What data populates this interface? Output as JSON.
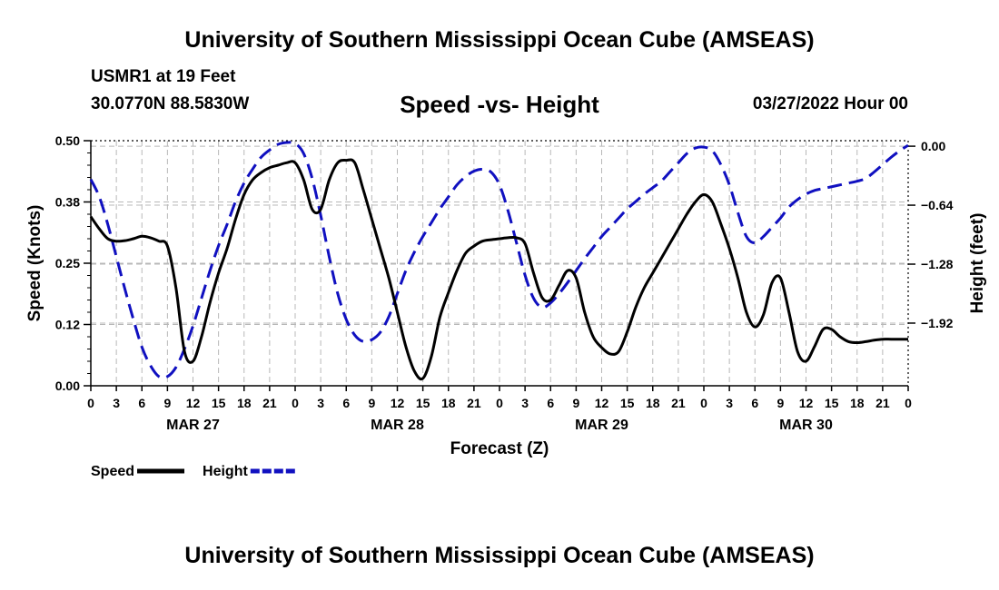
{
  "header": {
    "title": "University of Southern Mississippi Ocean Cube (AMSEAS)",
    "station": "USMR1 at 19 Feet",
    "coords": "30.0770N  88.5830W",
    "subtitle": "Speed -vs- Height",
    "datetime": "03/27/2022 Hour 00"
  },
  "footer": {
    "title": "University of Southern Mississippi Ocean Cube (AMSEAS)"
  },
  "chart_data": {
    "type": "line",
    "xlabel": "Forecast (Z)",
    "ylabel": "Speed (Knots)",
    "y2label": "Height (feet)",
    "xlim": [
      0,
      96
    ],
    "ylim": [
      0,
      0.5
    ],
    "y2lim": [
      -2.6,
      0.06
    ],
    "yticks": [
      0.0,
      0.125,
      0.25,
      0.375,
      0.5
    ],
    "ytick_labels": [
      "0.00",
      "0.12",
      "0.25",
      "0.38",
      "0.50"
    ],
    "y2ticks": [
      0.0,
      -0.64,
      -1.28,
      -1.92
    ],
    "y2tick_labels": [
      "0.00",
      "−0.64",
      "−1.28",
      "−1.92"
    ],
    "xtick_labels": [
      "0",
      "3",
      "6",
      "9",
      "12",
      "15",
      "18",
      "21",
      "0",
      "3",
      "6",
      "9",
      "12",
      "15",
      "18",
      "21",
      "0",
      "3",
      "6",
      "9",
      "12",
      "15",
      "18",
      "21",
      "0",
      "3",
      "6",
      "9",
      "12",
      "15",
      "18",
      "21",
      "0"
    ],
    "day_labels": [
      {
        "label": "MAR 27",
        "hour": 12
      },
      {
        "label": "MAR 28",
        "hour": 36
      },
      {
        "label": "MAR 29",
        "hour": 60
      },
      {
        "label": "MAR 30",
        "hour": 84
      }
    ],
    "legend": [
      {
        "name": "Speed",
        "color": "#000000",
        "style": "solid"
      },
      {
        "name": "Height",
        "color": "#1010c0",
        "style": "dashed"
      }
    ],
    "series": [
      {
        "name": "Speed",
        "axis": "left",
        "color": "#000000",
        "x": [
          0,
          1,
          2,
          3,
          4,
          5,
          6,
          7,
          8,
          9,
          10,
          11,
          12,
          13,
          14,
          15,
          16,
          17,
          18,
          19,
          20,
          21,
          22,
          23,
          24,
          25,
          26,
          27,
          28,
          29,
          30,
          31,
          32,
          33,
          34,
          35,
          36,
          37,
          38,
          39,
          40,
          41,
          42,
          43,
          44,
          45,
          46,
          47,
          48,
          49,
          50,
          51,
          52,
          53,
          54,
          55,
          56,
          57,
          58,
          59,
          60,
          61,
          62,
          63,
          64,
          65,
          66,
          67,
          68,
          69,
          70,
          71,
          72,
          73,
          74,
          75,
          76,
          77,
          78,
          79,
          80,
          81,
          82,
          83,
          84,
          85,
          86,
          87,
          88,
          89,
          90,
          91,
          92,
          93,
          94,
          95,
          96
        ],
        "values": [
          0.345,
          0.32,
          0.3,
          0.295,
          0.296,
          0.3,
          0.305,
          0.302,
          0.295,
          0.285,
          0.2,
          0.07,
          0.05,
          0.1,
          0.17,
          0.23,
          0.28,
          0.34,
          0.39,
          0.42,
          0.435,
          0.445,
          0.45,
          0.455,
          0.455,
          0.42,
          0.36,
          0.36,
          0.42,
          0.455,
          0.46,
          0.455,
          0.4,
          0.34,
          0.28,
          0.22,
          0.15,
          0.08,
          0.03,
          0.015,
          0.06,
          0.14,
          0.19,
          0.235,
          0.27,
          0.285,
          0.295,
          0.298,
          0.3,
          0.302,
          0.302,
          0.29,
          0.23,
          0.18,
          0.175,
          0.205,
          0.235,
          0.22,
          0.15,
          0.1,
          0.078,
          0.065,
          0.07,
          0.11,
          0.16,
          0.2,
          0.23,
          0.26,
          0.29,
          0.32,
          0.35,
          0.375,
          0.39,
          0.375,
          0.33,
          0.28,
          0.22,
          0.15,
          0.12,
          0.145,
          0.21,
          0.22,
          0.15,
          0.07,
          0.05,
          0.08,
          0.115,
          0.115,
          0.1,
          0.09,
          0.088,
          0.09,
          0.093,
          0.095,
          0.095,
          0.095,
          0.095
        ]
      },
      {
        "name": "Height",
        "axis": "right",
        "color": "#1010c0",
        "x": [
          0,
          1,
          2,
          3,
          4,
          5,
          6,
          7,
          8,
          9,
          10,
          11,
          12,
          13,
          14,
          15,
          16,
          17,
          18,
          19,
          20,
          21,
          22,
          23,
          24,
          25,
          26,
          27,
          28,
          29,
          30,
          31,
          32,
          33,
          34,
          35,
          36,
          37,
          38,
          39,
          40,
          41,
          42,
          43,
          44,
          45,
          46,
          47,
          48,
          49,
          50,
          51,
          52,
          53,
          54,
          55,
          56,
          57,
          58,
          59,
          60,
          61,
          62,
          63,
          64,
          65,
          66,
          67,
          68,
          69,
          70,
          71,
          72,
          73,
          74,
          75,
          76,
          77,
          78,
          79,
          80,
          81,
          82,
          83,
          84,
          85,
          86,
          87,
          88,
          89,
          90,
          91,
          92,
          93,
          94,
          95,
          96
        ],
        "values": [
          -0.36,
          -0.55,
          -0.85,
          -1.2,
          -1.55,
          -1.88,
          -2.18,
          -2.38,
          -2.5,
          -2.5,
          -2.4,
          -2.2,
          -1.95,
          -1.65,
          -1.35,
          -1.08,
          -0.85,
          -0.6,
          -0.4,
          -0.25,
          -0.12,
          -0.04,
          0.02,
          0.04,
          0.03,
          -0.08,
          -0.35,
          -0.75,
          -1.2,
          -1.6,
          -1.88,
          -2.05,
          -2.12,
          -2.1,
          -2.02,
          -1.85,
          -1.6,
          -1.35,
          -1.15,
          -0.98,
          -0.83,
          -0.68,
          -0.55,
          -0.42,
          -0.33,
          -0.27,
          -0.25,
          -0.28,
          -0.42,
          -0.7,
          -1.05,
          -1.4,
          -1.65,
          -1.75,
          -1.7,
          -1.6,
          -1.48,
          -1.35,
          -1.22,
          -1.1,
          -0.98,
          -0.88,
          -0.78,
          -0.68,
          -0.6,
          -0.52,
          -0.45,
          -0.38,
          -0.28,
          -0.18,
          -0.08,
          -0.02,
          -0.01,
          -0.05,
          -0.2,
          -0.42,
          -0.72,
          -0.98,
          -1.05,
          -0.98,
          -0.88,
          -0.78,
          -0.66,
          -0.58,
          -0.52,
          -0.48,
          -0.46,
          -0.44,
          -0.42,
          -0.4,
          -0.38,
          -0.35,
          -0.28,
          -0.2,
          -0.12,
          -0.05,
          0.01
        ]
      }
    ]
  }
}
